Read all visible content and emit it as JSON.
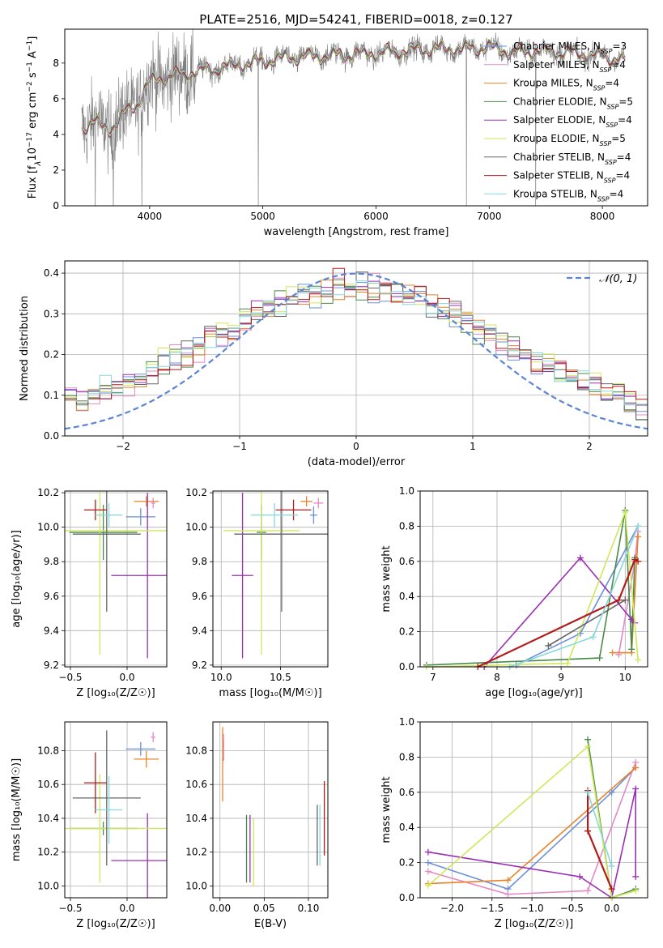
{
  "title": "PLATE=2516, MJD=54241, FIBERID=0018, z=0.127",
  "models": [
    {
      "name": "Chabrier MILES",
      "n": "3",
      "color": "#6a8fdc"
    },
    {
      "name": "Salpeter MILES",
      "n": "4",
      "color": "#e389c6"
    },
    {
      "name": "Kroupa MILES",
      "n": "4",
      "color": "#e8832a"
    },
    {
      "name": "Chabrier ELODIE",
      "n": "5",
      "color": "#4a8a4a"
    },
    {
      "name": "Salpeter ELODIE",
      "n": "4",
      "color": "#9a2fb3"
    },
    {
      "name": "Kroupa ELODIE",
      "n": "5",
      "color": "#cfe85a"
    },
    {
      "name": "Chabrier STELIB",
      "n": "4",
      "color": "#666666"
    },
    {
      "name": "Salpeter STELIB",
      "n": "4",
      "color": "#b31b1b"
    },
    {
      "name": "Kroupa STELIB",
      "n": "4",
      "color": "#86d8dc"
    }
  ],
  "chart_data": [
    {
      "id": "spectrum",
      "type": "line",
      "xlabel": "wavelength [Angstrom, rest frame]",
      "ylabel_parts": [
        "Flux [f",
        "λ",
        "10",
        "−17",
        " erg cm",
        "−2",
        " s",
        "−1",
        " A",
        "−1",
        "]"
      ],
      "xlim": [
        3250,
        8400
      ],
      "ylim": [
        0,
        9.9
      ],
      "xticks": [
        4000,
        5000,
        6000,
        7000,
        8000
      ],
      "yticks": [
        0,
        2,
        4,
        6,
        8
      ],
      "data_range": [
        3400,
        8200
      ],
      "model_knots": {
        "x": [
          3400,
          3500,
          3650,
          3800,
          3900,
          4000,
          4200,
          4500,
          4800,
          5000,
          5200,
          5500,
          5800,
          6000,
          6300,
          6500,
          6800,
          7000,
          7200,
          7500,
          7800,
          8000,
          8200
        ],
        "y": [
          4.4,
          4.7,
          4.3,
          5.3,
          5.8,
          7.0,
          7.3,
          7.6,
          7.9,
          8.1,
          8.3,
          8.4,
          8.5,
          8.55,
          8.7,
          8.8,
          8.8,
          8.9,
          8.6,
          8.7,
          8.5,
          8.4,
          8.1
        ]
      }
    },
    {
      "id": "residuals",
      "type": "histogram",
      "xlabel": "(data-model)/error",
      "ylabel": "Normed distribution",
      "xlim": [
        -2.5,
        2.5
      ],
      "ylim": [
        0,
        0.43
      ],
      "xticks": [
        -2,
        -1,
        0,
        1,
        2
      ],
      "yticks": [
        0,
        0.1,
        0.2,
        0.3,
        0.4
      ],
      "bin_range": [
        -2.5,
        2.5
      ],
      "n_bins": 50,
      "reference_label": "𝒩(0, 1)",
      "reference": "normal pdf, mean 0, sigma 1"
    },
    {
      "id": "age-vs-Z",
      "type": "errorbar",
      "xlabel": "Z [log₁₀(Z/Z☉)]",
      "ylabel": "age  [log₁₀(age/yr)]",
      "xlim": [
        -0.55,
        0.35
      ],
      "ylim": [
        9.19,
        10.21
      ],
      "xticks": [
        -0.5,
        0.0
      ],
      "xticklabels": [
        "−0.5",
        "0.0"
      ],
      "yticks": [
        9.2,
        9.4,
        9.6,
        9.8,
        10.0,
        10.2
      ],
      "points": [
        {
          "m": 0,
          "x": 0.12,
          "xerr": 0.13,
          "y": 10.06,
          "yerr": 0.05
        },
        {
          "m": 1,
          "x": 0.23,
          "xerr": 0.02,
          "y": 10.14,
          "yerr": 0.03
        },
        {
          "m": 2,
          "x": 0.17,
          "xerr": 0.11,
          "y": 10.15,
          "yerr": 0.03
        },
        {
          "m": 3,
          "x": -0.21,
          "xerr": 0.3,
          "y": 9.97,
          "yerr": 0.16
        },
        {
          "m": 4,
          "x": 0.18,
          "xerr": 0.32,
          "y": 9.72,
          "yerr": 0.48
        },
        {
          "m": 5,
          "x": -0.24,
          "xerr": 0.6,
          "y": 9.98,
          "yerr": 0.72
        },
        {
          "m": 6,
          "x": -0.18,
          "xerr": 0.3,
          "y": 9.96,
          "yerr": 0.45
        },
        {
          "m": 7,
          "x": -0.28,
          "xerr": 0.1,
          "y": 10.1,
          "yerr": 0.06
        },
        {
          "m": 8,
          "x": -0.16,
          "xerr": 0.12,
          "y": 10.07,
          "yerr": 0.07
        }
      ]
    },
    {
      "id": "age-vs-mass",
      "type": "errorbar",
      "xlabel": "mass [log₁₀(M/M☉)]",
      "ylabel": "",
      "xlim": [
        9.93,
        10.9
      ],
      "ylim": [
        9.19,
        10.21
      ],
      "xticks": [
        10.0,
        10.5
      ],
      "xticklabels": [
        "10.0",
        "10.5"
      ],
      "yticks": [
        9.2,
        9.4,
        9.6,
        9.8,
        10.0,
        10.2
      ],
      "points": [
        {
          "m": 0,
          "x": 10.78,
          "xerr": 0.03,
          "y": 10.07,
          "yerr": 0.05
        },
        {
          "m": 1,
          "x": 10.82,
          "xerr": 0.04,
          "y": 10.14,
          "yerr": 0.03
        },
        {
          "m": 2,
          "x": 10.72,
          "xerr": 0.05,
          "y": 10.15,
          "yerr": 0.03
        },
        {
          "m": 3,
          "x": 10.34,
          "xerr": 0.04,
          "y": 9.97,
          "yerr": 0.16
        },
        {
          "m": 4,
          "x": 10.18,
          "xerr": 0.09,
          "y": 9.72,
          "yerr": 0.48
        },
        {
          "m": 5,
          "x": 10.34,
          "xerr": 0.32,
          "y": 9.98,
          "yerr": 0.72
        },
        {
          "m": 6,
          "x": 10.51,
          "xerr": 0.4,
          "y": 9.96,
          "yerr": 0.45
        },
        {
          "m": 7,
          "x": 10.61,
          "xerr": 0.15,
          "y": 10.1,
          "yerr": 0.06
        },
        {
          "m": 8,
          "x": 10.45,
          "xerr": 0.2,
          "y": 10.07,
          "yerr": 0.07
        }
      ]
    },
    {
      "id": "weight-vs-age",
      "type": "line",
      "xlabel": "age  [log₁₀(age/yr)]",
      "ylabel": "mass weight",
      "xlim": [
        6.8,
        10.35
      ],
      "ylim": [
        0,
        1.0
      ],
      "xticks": [
        7,
        8,
        9,
        10
      ],
      "yticks": [
        0.0,
        0.2,
        0.4,
        0.6,
        0.8,
        1.0
      ],
      "series": [
        {
          "m": 0,
          "x": [
            8.3,
            9.3,
            10.2
          ],
          "y": [
            0.01,
            0.19,
            0.8
          ]
        },
        {
          "m": 1,
          "x": [
            9.9,
            10.15,
            10.2
          ],
          "y": [
            0.07,
            0.6,
            0.77
          ]
        },
        {
          "m": 2,
          "x": [
            9.8,
            10.1,
            10.2
          ],
          "y": [
            0.08,
            0.08,
            0.74
          ]
        },
        {
          "m": 3,
          "x": [
            6.9,
            9.6,
            10.0,
            10.1,
            10.15
          ],
          "y": [
            0.01,
            0.05,
            0.89,
            0.1,
            0.62
          ]
        },
        {
          "m": 4,
          "x": [
            7.8,
            9.3,
            10.1,
            10.15
          ],
          "y": [
            0.0,
            0.62,
            0.27,
            0.25
          ]
        },
        {
          "m": 5,
          "x": [
            6.9,
            9.1,
            10.0,
            10.2
          ],
          "y": [
            0.0,
            0.02,
            0.88,
            0.04
          ]
        },
        {
          "m": 6,
          "x": [
            8.8,
            10.0
          ],
          "y": [
            0.12,
            0.38
          ]
        },
        {
          "m": 7,
          "x": [
            7.7,
            9.9,
            10.15,
            10.2
          ],
          "y": [
            0.0,
            0.38,
            0.61,
            0.6
          ]
        },
        {
          "m": 8,
          "x": [
            8.2,
            9.5,
            10.2
          ],
          "y": [
            0.0,
            0.17,
            0.8
          ]
        }
      ]
    },
    {
      "id": "mass-vs-Z",
      "type": "errorbar",
      "xlabel": "Z [log₁₀(Z/Z☉)]",
      "ylabel": "mass [log₁₀(M/M☉)]",
      "xlim": [
        -0.55,
        0.35
      ],
      "ylim": [
        9.93,
        10.97
      ],
      "xticks": [
        -0.5,
        0.0
      ],
      "xticklabels": [
        "−0.5",
        "0.0"
      ],
      "yticks": [
        10.0,
        10.2,
        10.4,
        10.6,
        10.8
      ],
      "points": [
        {
          "m": 0,
          "x": 0.12,
          "xerr": 0.13,
          "y": 10.81,
          "yerr": 0.04
        },
        {
          "m": 1,
          "x": 0.23,
          "xerr": 0.02,
          "y": 10.88,
          "yerr": 0.03
        },
        {
          "m": 2,
          "x": 0.17,
          "xerr": 0.11,
          "y": 10.75,
          "yerr": 0.05
        },
        {
          "m": 3,
          "x": -0.21,
          "xerr": 0.3,
          "y": 10.34,
          "yerr": 0.04
        },
        {
          "m": 4,
          "x": 0.18,
          "xerr": 0.32,
          "y": 10.15,
          "yerr": 0.28
        },
        {
          "m": 5,
          "x": -0.24,
          "xerr": 0.6,
          "y": 10.34,
          "yerr": 0.32
        },
        {
          "m": 6,
          "x": -0.18,
          "xerr": 0.3,
          "y": 10.52,
          "yerr": 0.4
        },
        {
          "m": 7,
          "x": -0.28,
          "xerr": 0.1,
          "y": 10.61,
          "yerr": 0.18
        },
        {
          "m": 8,
          "x": -0.16,
          "xerr": 0.12,
          "y": 10.45,
          "yerr": 0.2
        }
      ]
    },
    {
      "id": "mass-vs-EBV",
      "type": "errorbar",
      "xlabel": "E(B-V)",
      "ylabel": "",
      "xlim": [
        -0.008,
        0.122
      ],
      "ylim": [
        9.93,
        10.97
      ],
      "xticks": [
        0.0,
        0.05,
        0.1
      ],
      "xticklabels": [
        "0.00",
        "0.05",
        "0.10"
      ],
      "yticks": [
        10.0,
        10.2,
        10.4,
        10.6,
        10.8
      ],
      "points": [
        {
          "m": 0,
          "x": 0.004,
          "xerr": 0,
          "y": 10.8,
          "yerr": 0.06
        },
        {
          "m": 1,
          "x": 0.004,
          "xerr": 0,
          "y": 10.82,
          "yerr": 0.08
        },
        {
          "m": 2,
          "x": 0.003,
          "xerr": 0,
          "y": 10.72,
          "yerr": 0.22
        },
        {
          "m": 3,
          "x": 0.03,
          "xerr": 0,
          "y": 10.22,
          "yerr": 0.2
        },
        {
          "m": 4,
          "x": 0.034,
          "xerr": 0,
          "y": 10.22,
          "yerr": 0.2
        },
        {
          "m": 5,
          "x": 0.038,
          "xerr": 0,
          "y": 10.2,
          "yerr": 0.2
        },
        {
          "m": 6,
          "x": 0.11,
          "xerr": 0,
          "y": 10.3,
          "yerr": 0.18
        },
        {
          "m": 7,
          "x": 0.118,
          "xerr": 0,
          "y": 10.4,
          "yerr": 0.22
        },
        {
          "m": 8,
          "x": 0.113,
          "xerr": 0,
          "y": 10.3,
          "yerr": 0.18
        }
      ]
    },
    {
      "id": "weight-vs-Z",
      "type": "line",
      "xlabel": "Z [log₁₀(Z/Z☉)]",
      "ylabel": "mass weight",
      "xlim": [
        -2.4,
        0.45
      ],
      "ylim": [
        0,
        1.0
      ],
      "xticks": [
        -2.0,
        -1.5,
        -1.0,
        -0.5,
        0.0
      ],
      "xticklabels": [
        "−2.0",
        "−1.5",
        "−1.0",
        "−0.5",
        "0.0"
      ],
      "yticks": [
        0.0,
        0.2,
        0.4,
        0.6,
        0.8,
        1.0
      ],
      "series": [
        {
          "m": 0,
          "x": [
            -2.3,
            -1.3,
            0.0,
            0.3
          ],
          "y": [
            0.2,
            0.05,
            0.6,
            0.74
          ]
        },
        {
          "m": 1,
          "x": [
            -2.3,
            -1.3,
            -0.3,
            0.3
          ],
          "y": [
            0.15,
            0.02,
            0.04,
            0.77
          ]
        },
        {
          "m": 2,
          "x": [
            -2.3,
            -1.3,
            0.3
          ],
          "y": [
            0.08,
            0.1,
            0.74
          ]
        },
        {
          "m": 3,
          "x": [
            -0.3,
            0.0,
            0.3
          ],
          "y": [
            0.9,
            0.0,
            0.05
          ]
        },
        {
          "m": 4,
          "x": [
            -2.3,
            -0.4,
            0.0,
            0.3,
            0.3
          ],
          "y": [
            0.26,
            0.12,
            0.0,
            0.62,
            0.12
          ]
        },
        {
          "m": 5,
          "x": [
            -2.3,
            -0.3,
            0.0,
            0.3
          ],
          "y": [
            0.07,
            0.86,
            0.0,
            0.04
          ]
        },
        {
          "m": 6,
          "x": [
            -0.3,
            -0.3
          ],
          "y": [
            0.6,
            0.38
          ]
        },
        {
          "m": 7,
          "x": [
            -0.3,
            -0.3,
            0.0
          ],
          "y": [
            0.61,
            0.38,
            0.05
          ]
        },
        {
          "m": 8,
          "x": [
            -0.3,
            0.0
          ],
          "y": [
            0.6,
            0.18
          ]
        }
      ]
    }
  ]
}
